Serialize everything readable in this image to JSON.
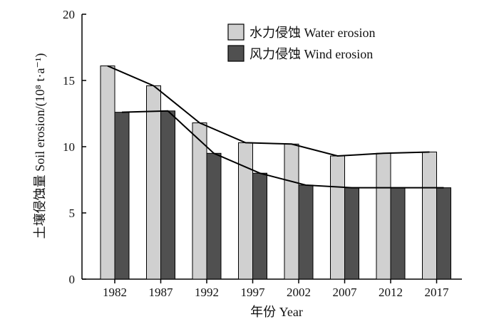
{
  "chart_data": {
    "type": "bar",
    "title": "",
    "xlabel": "年份 Year",
    "ylabel": "土壤侵蚀量 Soil erosion/(10⁸ t·a⁻¹)",
    "ylim": [
      0,
      20
    ],
    "yticks": [
      "0",
      "5",
      "10",
      "15",
      "20"
    ],
    "categories": [
      "1982",
      "1987",
      "1992",
      "1997",
      "2002",
      "2007",
      "2012",
      "2017"
    ],
    "series": [
      {
        "name": "水力侵蚀 Water erosion",
        "color": "#d0d0d0",
        "values": [
          16.1,
          14.6,
          11.8,
          10.3,
          10.2,
          9.3,
          9.5,
          9.6
        ]
      },
      {
        "name": "风力侵蚀 Wind erosion",
        "color": "#505050",
        "values": [
          12.6,
          12.7,
          9.5,
          8.0,
          7.1,
          6.9,
          6.9,
          6.9
        ]
      }
    ],
    "trend_lines": true,
    "legend_position": "top-right",
    "grid": false
  }
}
